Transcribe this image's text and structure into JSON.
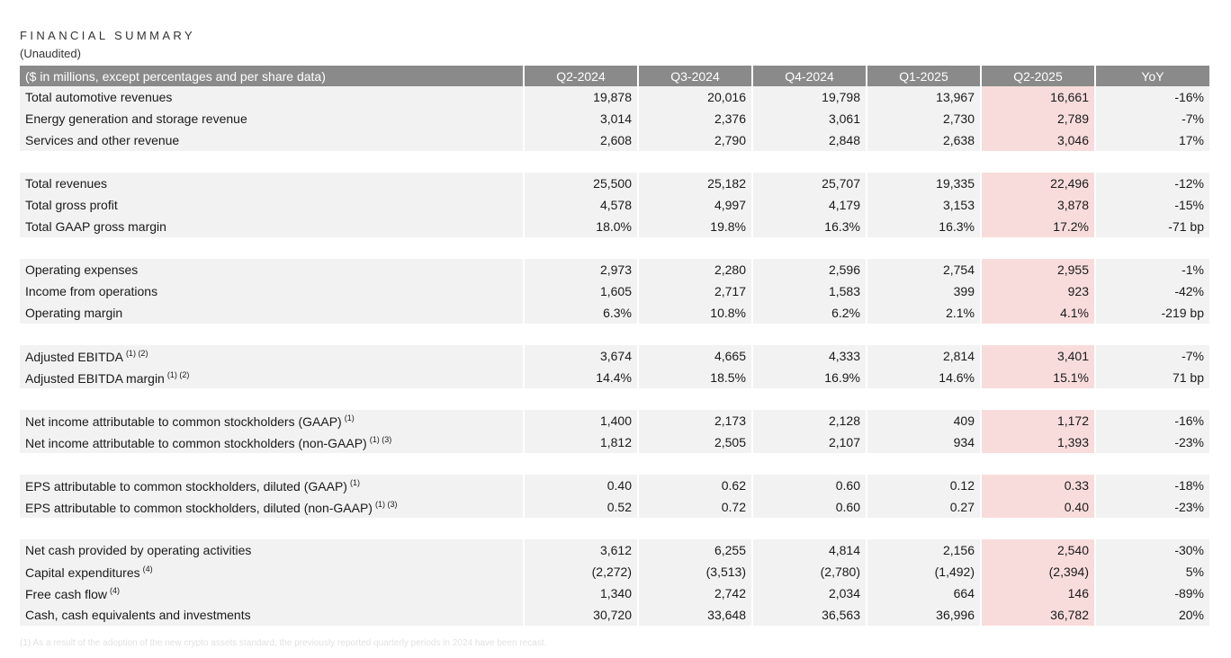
{
  "title": "FINANCIAL SUMMARY",
  "subtitle": "(Unaudited)",
  "colors": {
    "header_bg": "#8a8a8a",
    "row_bg": "#f2f2f2",
    "highlight": "#f8dcdc"
  },
  "table": {
    "header": {
      "label": "($ in millions, except percentages and per share data)",
      "columns": [
        "Q2-2024",
        "Q3-2024",
        "Q4-2024",
        "Q1-2025",
        "Q2-2025",
        "YoY"
      ]
    },
    "groups": [
      {
        "rows": [
          {
            "label": "Total automotive revenues",
            "sup": "",
            "values": [
              "19,878",
              "20,016",
              "19,798",
              "13,967",
              "16,661",
              "-16%"
            ]
          },
          {
            "label": "Energy generation and storage revenue",
            "sup": "",
            "values": [
              "3,014",
              "2,376",
              "3,061",
              "2,730",
              "2,789",
              "-7%"
            ]
          },
          {
            "label": "Services and other revenue",
            "sup": "",
            "values": [
              "2,608",
              "2,790",
              "2,848",
              "2,638",
              "3,046",
              "17%"
            ]
          }
        ]
      },
      {
        "rows": [
          {
            "label": "Total revenues",
            "sup": "",
            "values": [
              "25,500",
              "25,182",
              "25,707",
              "19,335",
              "22,496",
              "-12%"
            ]
          },
          {
            "label": "Total gross profit",
            "sup": "",
            "values": [
              "4,578",
              "4,997",
              "4,179",
              "3,153",
              "3,878",
              "-15%"
            ]
          },
          {
            "label": "Total GAAP gross margin",
            "sup": "",
            "values": [
              "18.0%",
              "19.8%",
              "16.3%",
              "16.3%",
              "17.2%",
              "-71 bp"
            ]
          }
        ]
      },
      {
        "rows": [
          {
            "label": "Operating expenses",
            "sup": "",
            "values": [
              "2,973",
              "2,280",
              "2,596",
              "2,754",
              "2,955",
              "-1%"
            ]
          },
          {
            "label": "Income from operations",
            "sup": "",
            "values": [
              "1,605",
              "2,717",
              "1,583",
              "399",
              "923",
              "-42%"
            ]
          },
          {
            "label": "Operating margin",
            "sup": "",
            "values": [
              "6.3%",
              "10.8%",
              "6.2%",
              "2.1%",
              "4.1%",
              "-219 bp"
            ]
          }
        ]
      },
      {
        "rows": [
          {
            "label": "Adjusted EBITDA",
            "sup": "(1) (2)",
            "values": [
              "3,674",
              "4,665",
              "4,333",
              "2,814",
              "3,401",
              "-7%"
            ]
          },
          {
            "label": "Adjusted EBITDA margin",
            "sup": "(1) (2)",
            "values": [
              "14.4%",
              "18.5%",
              "16.9%",
              "14.6%",
              "15.1%",
              "71 bp"
            ]
          }
        ]
      },
      {
        "rows": [
          {
            "label": "Net income attributable to common stockholders (GAAP)",
            "sup": "(1)",
            "values": [
              "1,400",
              "2,173",
              "2,128",
              "409",
              "1,172",
              "-16%"
            ]
          },
          {
            "label": "Net income attributable to common stockholders (non-GAAP)",
            "sup": "(1) (3)",
            "values": [
              "1,812",
              "2,505",
              "2,107",
              "934",
              "1,393",
              "-23%"
            ]
          }
        ]
      },
      {
        "rows": [
          {
            "label": "EPS attributable to common stockholders, diluted (GAAP)",
            "sup": "(1)",
            "values": [
              "0.40",
              "0.62",
              "0.60",
              "0.12",
              "0.33",
              "-18%"
            ]
          },
          {
            "label": "EPS attributable to common stockholders, diluted (non-GAAP)",
            "sup": "(1) (3)",
            "values": [
              "0.52",
              "0.72",
              "0.60",
              "0.27",
              "0.40",
              "-23%"
            ]
          }
        ]
      },
      {
        "rows": [
          {
            "label": "Net cash provided by operating activities",
            "sup": "",
            "values": [
              "3,612",
              "6,255",
              "4,814",
              "2,156",
              "2,540",
              "-30%"
            ]
          },
          {
            "label": "Capital expenditures",
            "sup": "(4)",
            "values": [
              "(2,272)",
              "(3,513)",
              "(2,780)",
              "(1,492)",
              "(2,394)",
              "5%"
            ]
          },
          {
            "label": "Free cash flow",
            "sup": "(4)",
            "values": [
              "1,340",
              "2,742",
              "2,034",
              "664",
              "146",
              "-89%"
            ]
          },
          {
            "label": "Cash, cash equivalents and investments",
            "sup": "",
            "values": [
              "30,720",
              "33,648",
              "36,563",
              "36,996",
              "36,782",
              "20%"
            ]
          }
        ]
      }
    ]
  },
  "footnote": "(1) As a result of the adoption of the new crypto assets standard, the previously reported quarterly periods in 2024 have been recast."
}
